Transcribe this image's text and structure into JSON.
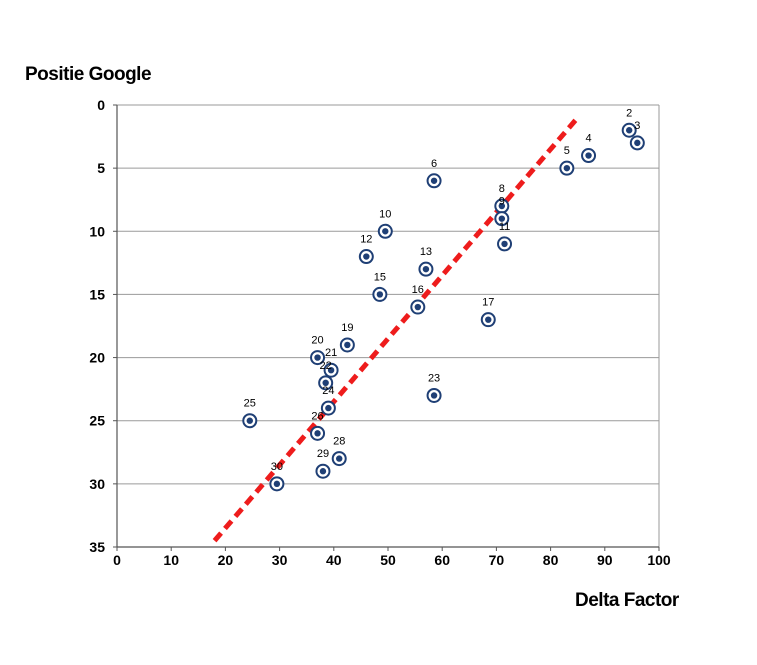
{
  "chart_data": {
    "type": "scatter",
    "ylabel": "Positie Google",
    "xlabel": "Delta Factor",
    "xlim": [
      0,
      100
    ],
    "ylim": [
      0,
      35
    ],
    "y_inverted": true,
    "x_ticks": [
      "0",
      "10",
      "20",
      "30",
      "40",
      "50",
      "60",
      "70",
      "80",
      "90",
      "100"
    ],
    "y_ticks": [
      "0",
      "5",
      "10",
      "15",
      "20",
      "25",
      "30",
      "35"
    ],
    "grid": "horizontal",
    "points": [
      {
        "label": "2",
        "x": 94.5,
        "y": 2
      },
      {
        "label": "3",
        "x": 96,
        "y": 3
      },
      {
        "label": "4",
        "x": 87,
        "y": 4
      },
      {
        "label": "5",
        "x": 83,
        "y": 5
      },
      {
        "label": "6",
        "x": 58.5,
        "y": 6
      },
      {
        "label": "8",
        "x": 71,
        "y": 8
      },
      {
        "label": "9",
        "x": 71,
        "y": 9
      },
      {
        "label": "10",
        "x": 49.5,
        "y": 10
      },
      {
        "label": "11",
        "x": 71.5,
        "y": 11
      },
      {
        "label": "12",
        "x": 46,
        "y": 12
      },
      {
        "label": "13",
        "x": 57,
        "y": 13
      },
      {
        "label": "15",
        "x": 48.5,
        "y": 15
      },
      {
        "label": "16",
        "x": 55.5,
        "y": 16
      },
      {
        "label": "17",
        "x": 68.5,
        "y": 17
      },
      {
        "label": "19",
        "x": 42.5,
        "y": 19
      },
      {
        "label": "20",
        "x": 37,
        "y": 20
      },
      {
        "label": "21",
        "x": 39.5,
        "y": 21
      },
      {
        "label": "22",
        "x": 38.5,
        "y": 22
      },
      {
        "label": "23",
        "x": 58.5,
        "y": 23
      },
      {
        "label": "24",
        "x": 39,
        "y": 24
      },
      {
        "label": "25",
        "x": 24.5,
        "y": 25
      },
      {
        "label": "26",
        "x": 37,
        "y": 26
      },
      {
        "label": "28",
        "x": 41,
        "y": 28
      },
      {
        "label": "29",
        "x": 38,
        "y": 29
      },
      {
        "label": "30",
        "x": 29.5,
        "y": 30
      }
    ],
    "trendline": {
      "x1": 18,
      "y1": 34.5,
      "x2": 85,
      "y2": 1,
      "color": "#ee1c1c",
      "style": "dashed"
    },
    "marker_color": "#1f3f75"
  }
}
